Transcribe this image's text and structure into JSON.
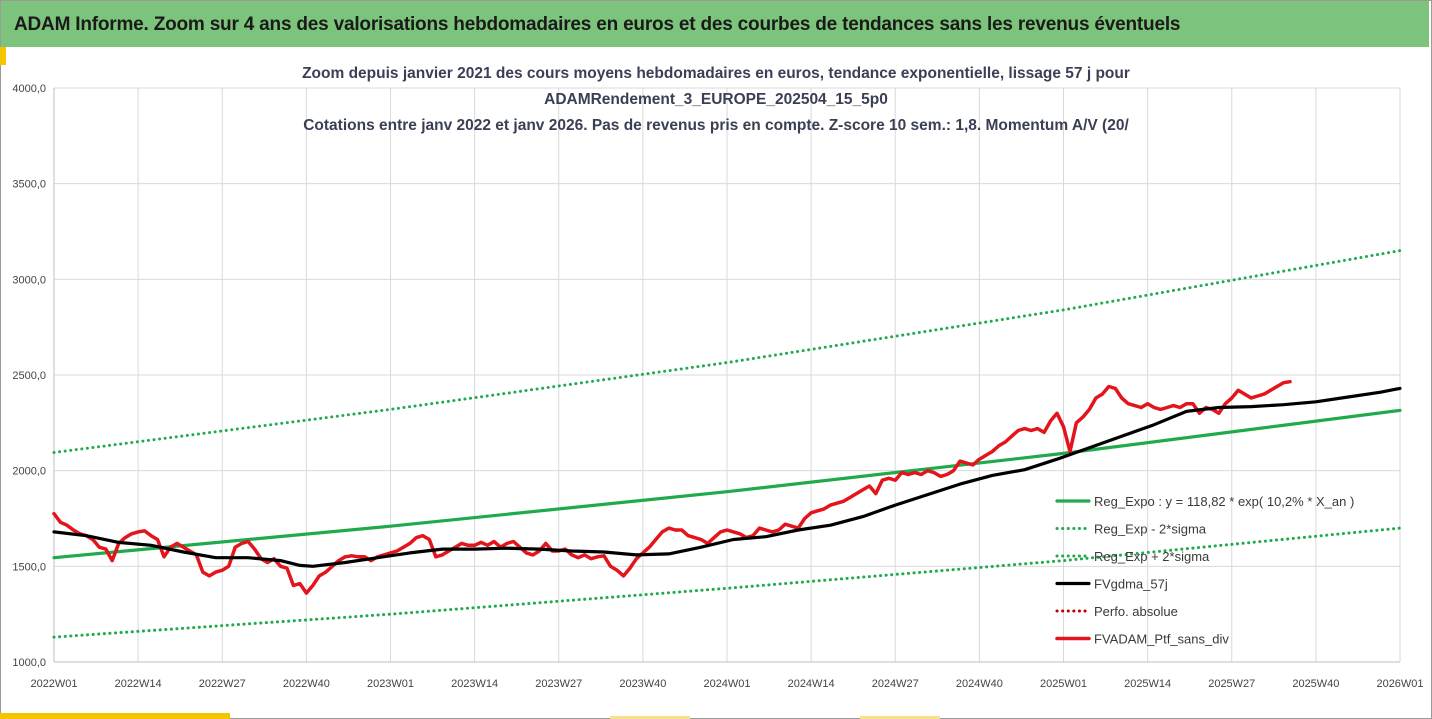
{
  "banner": {
    "title": "ADAM Informe. Zoom sur 4 ans des valorisations hebdomadaires en euros et des courbes de tendances sans les revenus éventuels"
  },
  "colors": {
    "banner_bg": "#7cc47b",
    "reg_expo": "#1faa4c",
    "price": "#e3141b",
    "smooth": "#000000",
    "perfo": "#c00000"
  },
  "chart_data": {
    "type": "line",
    "title_lines": [
      "Zoom depuis janvier 2021 des cours moyens hebdomadaires  en euros, tendance exponentielle, lissage 57 j pour",
      "ADAMRendement_3_EUROPE_202504_15_5p0",
      "Cotations entre janv 2022 et janv 2026. Pas de revenus pris en compte. Z-score 10 sem.: 1,8. Momentum A/V (20/"
    ],
    "xlabel": "",
    "ylabel": "",
    "ylim": [
      1000,
      4000
    ],
    "grid": true,
    "legend_position": "right",
    "y_ticks": [
      "1000,0",
      "1500,0",
      "2000,0",
      "2500,0",
      "3000,0",
      "3500,0",
      "4000,0"
    ],
    "x_ticks": [
      {
        "week": 0,
        "label": "2022W01"
      },
      {
        "week": 13,
        "label": "2022W14"
      },
      {
        "week": 26,
        "label": "2022W27"
      },
      {
        "week": 39,
        "label": "2022W40"
      },
      {
        "week": 52,
        "label": "2023W01"
      },
      {
        "week": 65,
        "label": "2023W14"
      },
      {
        "week": 78,
        "label": "2023W27"
      },
      {
        "week": 91,
        "label": "2023W40"
      },
      {
        "week": 104,
        "label": "2024W01"
      },
      {
        "week": 117,
        "label": "2024W14"
      },
      {
        "week": 130,
        "label": "2024W27"
      },
      {
        "week": 143,
        "label": "2024W40"
      },
      {
        "week": 156,
        "label": "2025W01"
      },
      {
        "week": 169,
        "label": "2025W14"
      },
      {
        "week": 182,
        "label": "2025W27"
      },
      {
        "week": 195,
        "label": "2025W40"
      },
      {
        "week": 208,
        "label": "2026W01"
      }
    ],
    "x_range": [
      0,
      208
    ],
    "series": [
      {
        "name": "Reg_Expo : y = 118,82 * exp( 10,2% *  X_an )",
        "style": "solid",
        "color": "#1faa4c",
        "points": [
          [
            0,
            1545
          ],
          [
            52,
            1710
          ],
          [
            104,
            1890
          ],
          [
            156,
            2090
          ],
          [
            208,
            2315
          ]
        ]
      },
      {
        "name": "Reg_Exp - 2*sigma",
        "style": "dotted",
        "color": "#1faa4c",
        "points": [
          [
            0,
            1130
          ],
          [
            52,
            1250
          ],
          [
            104,
            1385
          ],
          [
            156,
            1530
          ],
          [
            208,
            1700
          ]
        ]
      },
      {
        "name": "Reg_Exp + 2*sigma",
        "style": "dotted",
        "color": "#1faa4c",
        "points": [
          [
            0,
            2095
          ],
          [
            52,
            2320
          ],
          [
            104,
            2565
          ],
          [
            156,
            2840
          ],
          [
            208,
            3150
          ]
        ]
      },
      {
        "name": "FVgdma_57j",
        "style": "solid",
        "color": "#000000",
        "points": [
          [
            0,
            1680
          ],
          [
            5,
            1660
          ],
          [
            10,
            1625
          ],
          [
            15,
            1610
          ],
          [
            20,
            1575
          ],
          [
            25,
            1545
          ],
          [
            30,
            1545
          ],
          [
            35,
            1530
          ],
          [
            38,
            1505
          ],
          [
            40,
            1500
          ],
          [
            45,
            1520
          ],
          [
            50,
            1545
          ],
          [
            55,
            1570
          ],
          [
            60,
            1590
          ],
          [
            65,
            1590
          ],
          [
            70,
            1595
          ],
          [
            75,
            1590
          ],
          [
            80,
            1580
          ],
          [
            85,
            1575
          ],
          [
            90,
            1560
          ],
          [
            95,
            1565
          ],
          [
            100,
            1600
          ],
          [
            105,
            1640
          ],
          [
            110,
            1655
          ],
          [
            115,
            1690
          ],
          [
            120,
            1715
          ],
          [
            125,
            1760
          ],
          [
            130,
            1820
          ],
          [
            135,
            1875
          ],
          [
            140,
            1930
          ],
          [
            145,
            1975
          ],
          [
            150,
            2005
          ],
          [
            155,
            2060
          ],
          [
            160,
            2120
          ],
          [
            165,
            2180
          ],
          [
            170,
            2240
          ],
          [
            175,
            2310
          ],
          [
            180,
            2330
          ],
          [
            185,
            2335
          ],
          [
            190,
            2345
          ],
          [
            195,
            2360
          ],
          [
            200,
            2385
          ],
          [
            205,
            2410
          ],
          [
            208,
            2430
          ]
        ]
      },
      {
        "name": "Perfo. absolue",
        "style": "dotted",
        "color": "#c00000",
        "points": []
      },
      {
        "name": "FVADAM_Ptf_sans_div",
        "style": "solid",
        "color": "#e3141b",
        "points": [
          [
            0,
            1775
          ],
          [
            1,
            1730
          ],
          [
            2,
            1715
          ],
          [
            3,
            1690
          ],
          [
            4,
            1670
          ],
          [
            5,
            1660
          ],
          [
            6,
            1640
          ],
          [
            7,
            1600
          ],
          [
            8,
            1590
          ],
          [
            9,
            1530
          ],
          [
            10,
            1620
          ],
          [
            11,
            1650
          ],
          [
            12,
            1670
          ],
          [
            13,
            1680
          ],
          [
            14,
            1685
          ],
          [
            15,
            1660
          ],
          [
            16,
            1640
          ],
          [
            17,
            1550
          ],
          [
            18,
            1600
          ],
          [
            19,
            1620
          ],
          [
            20,
            1600
          ],
          [
            21,
            1580
          ],
          [
            22,
            1560
          ],
          [
            23,
            1470
          ],
          [
            24,
            1450
          ],
          [
            25,
            1470
          ],
          [
            26,
            1480
          ],
          [
            27,
            1500
          ],
          [
            28,
            1600
          ],
          [
            29,
            1620
          ],
          [
            30,
            1630
          ],
          [
            31,
            1590
          ],
          [
            32,
            1540
          ],
          [
            33,
            1520
          ],
          [
            34,
            1540
          ],
          [
            35,
            1500
          ],
          [
            36,
            1490
          ],
          [
            37,
            1400
          ],
          [
            38,
            1410
          ],
          [
            39,
            1360
          ],
          [
            40,
            1400
          ],
          [
            41,
            1450
          ],
          [
            42,
            1470
          ],
          [
            43,
            1500
          ],
          [
            44,
            1530
          ],
          [
            45,
            1550
          ],
          [
            46,
            1555
          ],
          [
            47,
            1550
          ],
          [
            48,
            1550
          ],
          [
            49,
            1530
          ],
          [
            50,
            1550
          ],
          [
            51,
            1560
          ],
          [
            52,
            1570
          ],
          [
            53,
            1580
          ],
          [
            54,
            1600
          ],
          [
            55,
            1620
          ],
          [
            56,
            1650
          ],
          [
            57,
            1660
          ],
          [
            58,
            1640
          ],
          [
            59,
            1550
          ],
          [
            60,
            1560
          ],
          [
            61,
            1580
          ],
          [
            62,
            1600
          ],
          [
            63,
            1620
          ],
          [
            64,
            1610
          ],
          [
            65,
            1610
          ],
          [
            66,
            1625
          ],
          [
            67,
            1610
          ],
          [
            68,
            1630
          ],
          [
            69,
            1600
          ],
          [
            70,
            1620
          ],
          [
            71,
            1630
          ],
          [
            72,
            1600
          ],
          [
            73,
            1570
          ],
          [
            74,
            1560
          ],
          [
            75,
            1580
          ],
          [
            76,
            1620
          ],
          [
            77,
            1580
          ],
          [
            78,
            1580
          ],
          [
            79,
            1590
          ],
          [
            80,
            1560
          ],
          [
            81,
            1545
          ],
          [
            82,
            1560
          ],
          [
            83,
            1540
          ],
          [
            84,
            1550
          ],
          [
            85,
            1555
          ],
          [
            86,
            1500
          ],
          [
            87,
            1480
          ],
          [
            88,
            1450
          ],
          [
            89,
            1490
          ],
          [
            90,
            1540
          ],
          [
            91,
            1570
          ],
          [
            92,
            1600
          ],
          [
            93,
            1640
          ],
          [
            94,
            1680
          ],
          [
            95,
            1700
          ],
          [
            96,
            1690
          ],
          [
            97,
            1690
          ],
          [
            98,
            1660
          ],
          [
            99,
            1650
          ],
          [
            100,
            1640
          ],
          [
            101,
            1620
          ],
          [
            102,
            1650
          ],
          [
            103,
            1680
          ],
          [
            104,
            1690
          ],
          [
            105,
            1680
          ],
          [
            106,
            1670
          ],
          [
            107,
            1650
          ],
          [
            108,
            1660
          ],
          [
            109,
            1700
          ],
          [
            110,
            1690
          ],
          [
            111,
            1680
          ],
          [
            112,
            1690
          ],
          [
            113,
            1720
          ],
          [
            114,
            1710
          ],
          [
            115,
            1700
          ],
          [
            116,
            1750
          ],
          [
            117,
            1780
          ],
          [
            118,
            1790
          ],
          [
            119,
            1800
          ],
          [
            120,
            1820
          ],
          [
            121,
            1830
          ],
          [
            122,
            1840
          ],
          [
            123,
            1860
          ],
          [
            124,
            1880
          ],
          [
            125,
            1900
          ],
          [
            126,
            1920
          ],
          [
            127,
            1880
          ],
          [
            128,
            1950
          ],
          [
            129,
            1960
          ],
          [
            130,
            1950
          ],
          [
            131,
            1990
          ],
          [
            132,
            1980
          ],
          [
            133,
            1990
          ],
          [
            134,
            1980
          ],
          [
            135,
            2000
          ],
          [
            136,
            1990
          ],
          [
            137,
            1970
          ],
          [
            138,
            1980
          ],
          [
            139,
            2000
          ],
          [
            140,
            2050
          ],
          [
            141,
            2040
          ],
          [
            142,
            2030
          ],
          [
            143,
            2060
          ],
          [
            144,
            2080
          ],
          [
            145,
            2100
          ],
          [
            146,
            2130
          ],
          [
            147,
            2150
          ],
          [
            148,
            2180
          ],
          [
            149,
            2210
          ],
          [
            150,
            2220
          ],
          [
            151,
            2210
          ],
          [
            152,
            2220
          ],
          [
            153,
            2200
          ],
          [
            154,
            2260
          ],
          [
            155,
            2300
          ],
          [
            156,
            2230
          ],
          [
            157,
            2100
          ],
          [
            158,
            2250
          ],
          [
            159,
            2280
          ],
          [
            160,
            2320
          ],
          [
            161,
            2380
          ],
          [
            162,
            2400
          ],
          [
            163,
            2440
          ],
          [
            164,
            2430
          ],
          [
            165,
            2380
          ],
          [
            166,
            2350
          ],
          [
            167,
            2340
          ],
          [
            168,
            2330
          ],
          [
            169,
            2350
          ],
          [
            170,
            2330
          ],
          [
            171,
            2320
          ],
          [
            172,
            2330
          ],
          [
            173,
            2340
          ],
          [
            174,
            2330
          ],
          [
            175,
            2350
          ],
          [
            176,
            2350
          ],
          [
            177,
            2300
          ],
          [
            178,
            2330
          ],
          [
            179,
            2320
          ],
          [
            180,
            2300
          ],
          [
            181,
            2350
          ],
          [
            182,
            2380
          ],
          [
            183,
            2420
          ],
          [
            184,
            2400
          ],
          [
            185,
            2380
          ],
          [
            186,
            2390
          ],
          [
            187,
            2400
          ],
          [
            188,
            2420
          ],
          [
            189,
            2440
          ],
          [
            190,
            2460
          ],
          [
            191,
            2465
          ]
        ]
      }
    ]
  }
}
